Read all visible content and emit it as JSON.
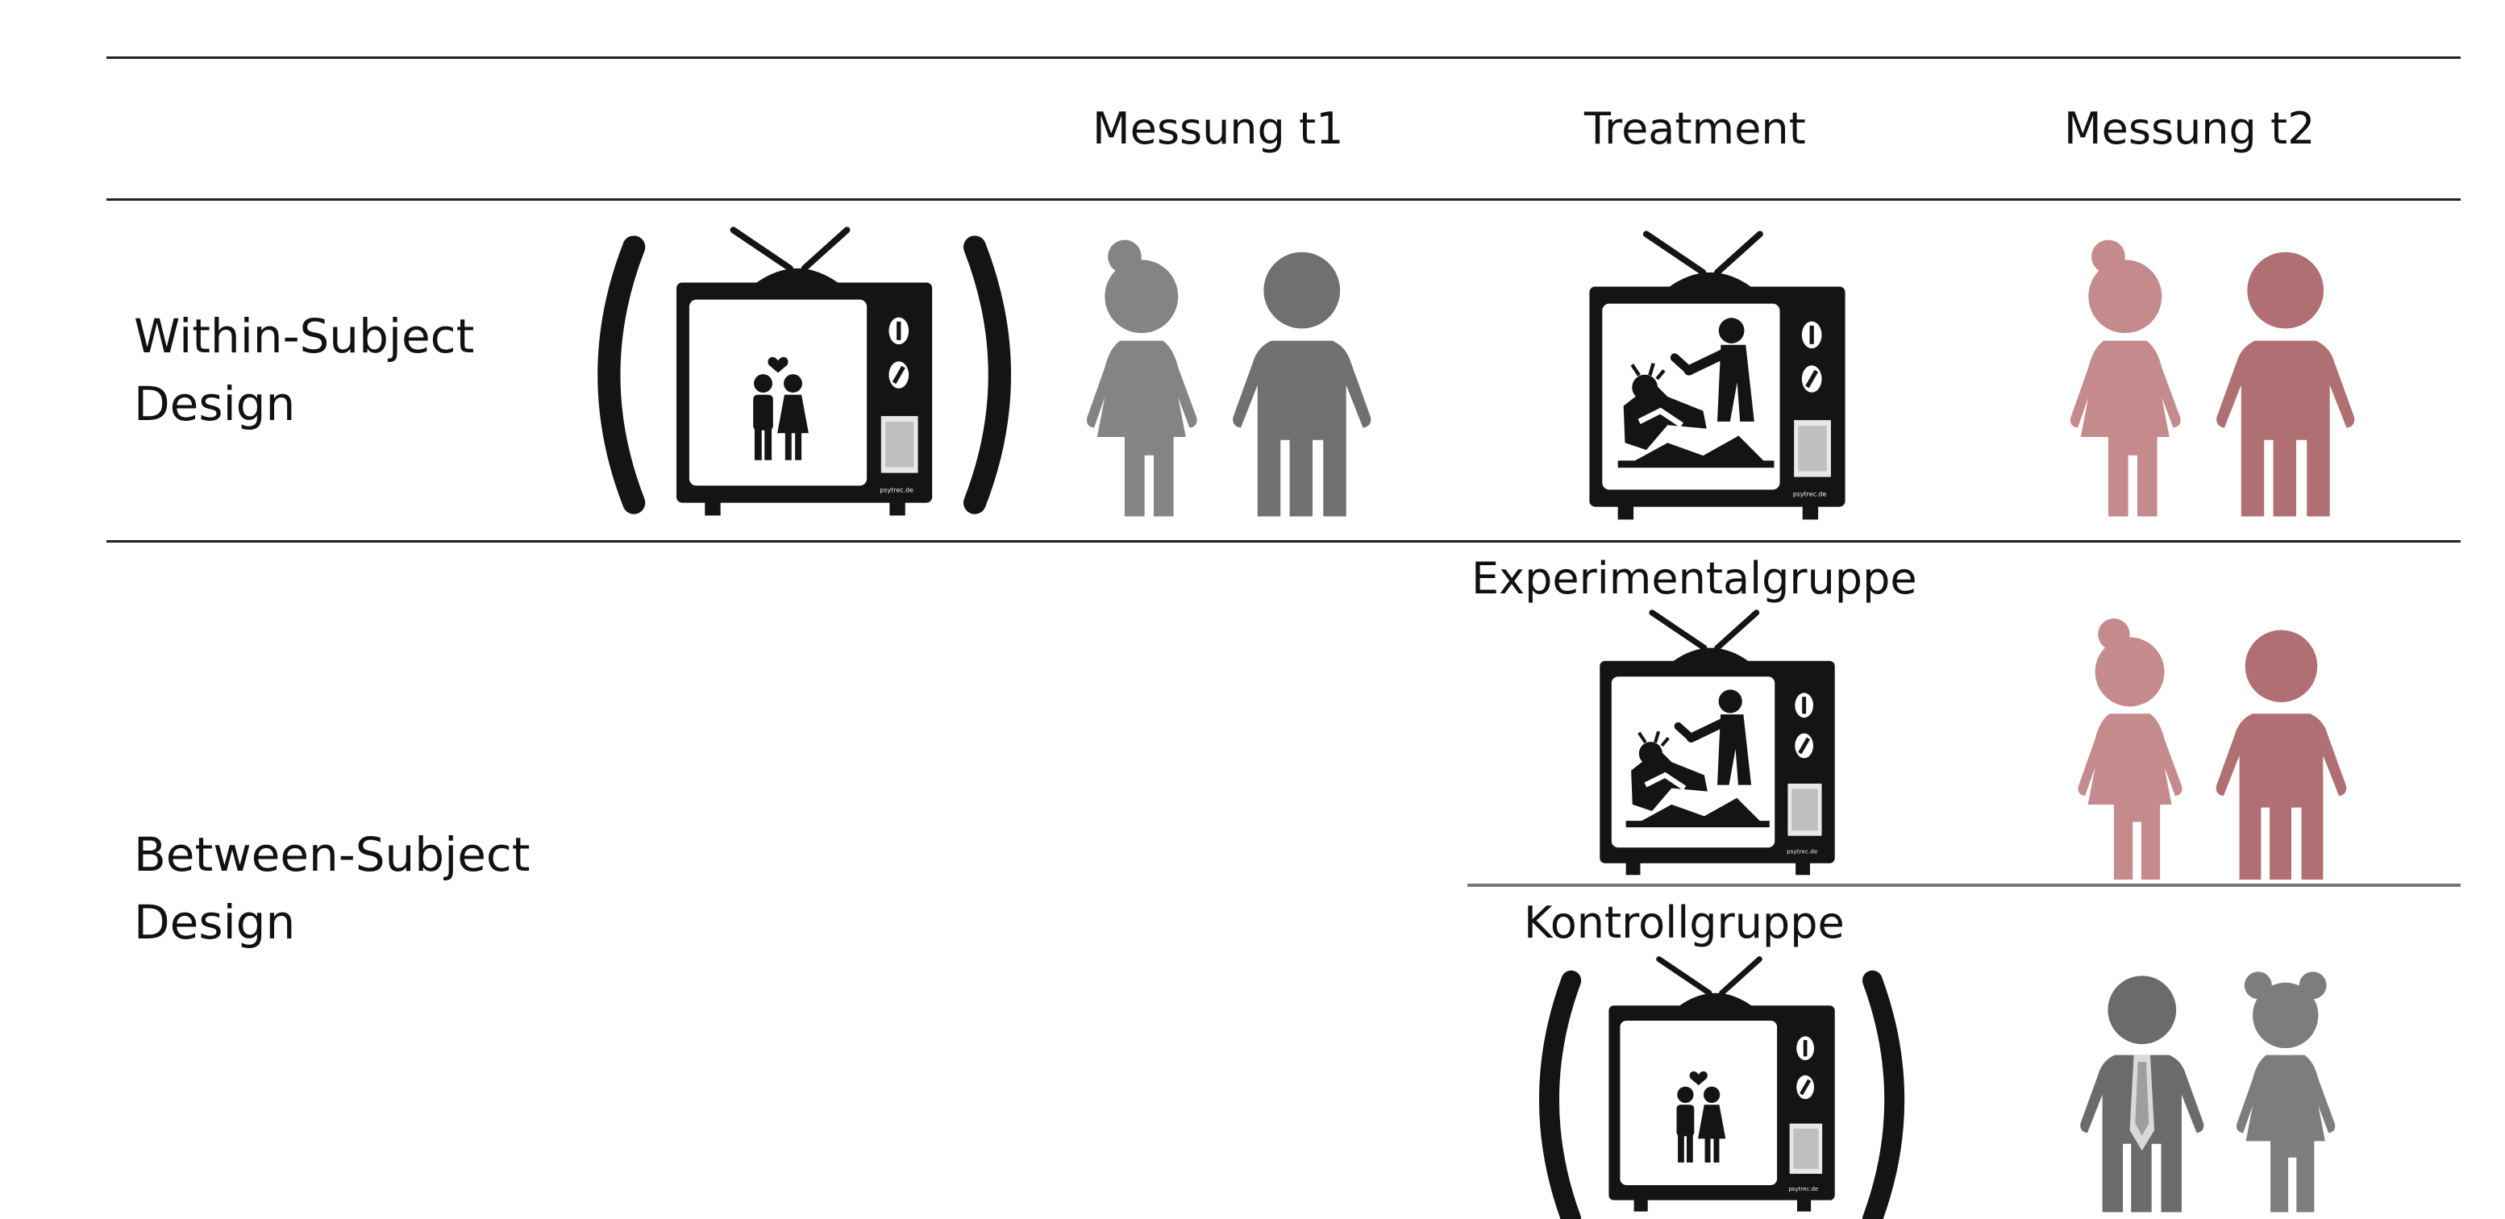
{
  "header": {
    "col1": "Messung t1",
    "col2": "Treatment",
    "col3": "Messung t2"
  },
  "rows": {
    "within": {
      "line1": "Within-Subject",
      "line2": "Design"
    },
    "between": {
      "line1": "Between-Subject",
      "line2": "Design"
    }
  },
  "groups": {
    "experimental": "Experimentalgruppe",
    "control": "Kontrollgruppe"
  },
  "tv_watermark": "psytrec.de",
  "colors": {
    "figure_gray": "#7d7d7d",
    "figure_dark": "#6b6b6b",
    "figure_red": "#c48a8c",
    "figure_red_dark": "#b06f73",
    "tv": "#141414"
  },
  "icons": [
    "tv-love-icon",
    "tv-violence-icon",
    "children-icon",
    "suit-icon"
  ]
}
